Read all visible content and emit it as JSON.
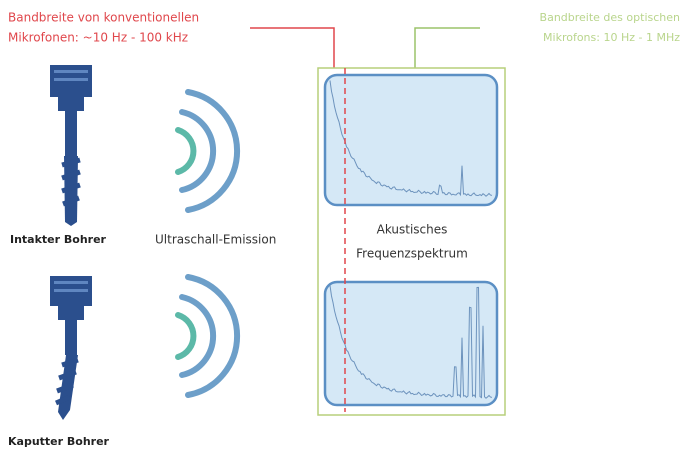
{
  "labels": {
    "conventional_bandwidth": [
      "Bandbreite von konventionellen",
      "Mikrofonen: ~10 Hz - 100 kHz"
    ],
    "optical_bandwidth": [
      "Bandbreite des optischen",
      "Mikrofons: 10 Hz - 1 MHz"
    ]
  },
  "drills": [
    {
      "label": "Intakter Bohrer"
    },
    {
      "label": "Kaputter Bohrer"
    }
  ],
  "emission": "Ultraschall-Emission",
  "spectrum": [
    "Akustisches",
    "Frequenzspektrum"
  ]
}
